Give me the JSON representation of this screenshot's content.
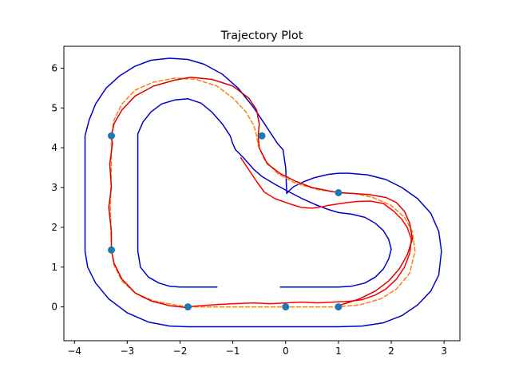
{
  "chart_data": {
    "type": "line",
    "title": "Trajectory Plot",
    "xlabel": "",
    "ylabel": "",
    "xlim": [
      -4.2,
      3.3
    ],
    "ylim": [
      -0.85,
      6.55
    ],
    "x_ticks": [
      -4,
      -3,
      -2,
      -1,
      0,
      1,
      2,
      3
    ],
    "y_ticks": [
      0,
      1,
      2,
      3,
      4,
      5,
      6
    ],
    "x_tick_labels": [
      "−4",
      "−3",
      "−2",
      "−1",
      "0",
      "1",
      "2",
      "3"
    ],
    "y_tick_labels": [
      "0",
      "1",
      "2",
      "3",
      "4",
      "5",
      "6"
    ],
    "grid": false,
    "legend": "none",
    "series": [
      {
        "color": "#0000cc",
        "style": "solid",
        "x": [
          -0.1,
          1.0,
          1.25,
          1.5,
          1.7,
          1.85,
          1.95,
          2.0,
          1.95,
          1.85,
          1.7,
          1.5,
          1.25,
          1.0,
          0.8,
          0.55,
          0.3,
          0.05,
          -0.2,
          -0.45,
          -0.6,
          -0.7,
          -0.8,
          -0.95,
          -1.0,
          -1.05,
          -1.2,
          -1.4,
          -1.6,
          -1.85,
          -2.1,
          -2.35,
          -2.55,
          -2.7,
          -2.8,
          -2.8,
          -2.8,
          -2.75,
          -2.6,
          -2.4,
          -2.2,
          -2.0,
          -1.8,
          -1.6,
          -1.45,
          -1.35,
          -1.3,
          -1.3
        ],
        "y": [
          0.5,
          0.5,
          0.52,
          0.6,
          0.75,
          0.95,
          1.2,
          1.45,
          1.7,
          1.92,
          2.1,
          2.25,
          2.33,
          2.37,
          2.45,
          2.58,
          2.73,
          2.9,
          3.08,
          3.28,
          3.45,
          3.6,
          3.75,
          3.95,
          4.1,
          4.3,
          4.6,
          4.9,
          5.12,
          5.23,
          5.2,
          5.1,
          4.9,
          4.65,
          4.35,
          3.0,
          1.4,
          1.0,
          0.75,
          0.6,
          0.52,
          0.5,
          0.5,
          0.5,
          0.5,
          0.5,
          0.5,
          0.5
        ]
      },
      {
        "color": "#0000cc",
        "style": "solid",
        "x": [
          -0.1,
          1.0,
          1.45,
          1.85,
          2.2,
          2.5,
          2.75,
          2.9,
          2.95,
          2.9,
          2.75,
          2.5,
          2.2,
          1.9,
          1.55,
          1.2,
          1.0,
          0.8,
          0.55,
          0.35,
          0.15,
          0.05,
          0.02,
          0.0,
          -0.05,
          -0.15,
          -0.35,
          -0.6,
          -0.9,
          -1.2,
          -1.55,
          -1.85,
          -2.2,
          -2.55,
          -2.85,
          -3.15,
          -3.4,
          -3.6,
          -3.72,
          -3.8,
          -3.8,
          -3.8,
          -3.75,
          -3.6,
          -3.35,
          -3.0,
          -2.6,
          -2.2,
          -1.85,
          -1.5,
          -1.0,
          -0.6,
          -0.3,
          -0.1
        ],
        "y": [
          -0.5,
          -0.5,
          -0.48,
          -0.4,
          -0.22,
          0.05,
          0.4,
          0.8,
          1.4,
          1.9,
          2.35,
          2.72,
          3.0,
          3.2,
          3.32,
          3.36,
          3.36,
          3.33,
          3.25,
          3.15,
          3.02,
          2.9,
          2.85,
          3.5,
          3.95,
          4.1,
          4.5,
          5.0,
          5.5,
          5.85,
          6.1,
          6.22,
          6.25,
          6.2,
          6.05,
          5.8,
          5.5,
          5.1,
          4.7,
          4.3,
          3.0,
          1.4,
          1.0,
          0.6,
          0.2,
          -0.15,
          -0.38,
          -0.48,
          -0.5,
          -0.5,
          -0.5,
          -0.5,
          -0.5,
          -0.5
        ]
      },
      {
        "color": "#ff7f0e",
        "style": "dashed",
        "x": [
          -1.85,
          -1.5,
          -1.0,
          -0.5,
          -0.1,
          0.0,
          0.5,
          1.0,
          1.4,
          1.8,
          2.1,
          2.35,
          2.45,
          2.4,
          2.25,
          2.0,
          1.65,
          1.3,
          1.0,
          0.6,
          0.2,
          -0.15,
          -0.4,
          -0.52,
          -0.55,
          -0.6,
          -0.75,
          -1.0,
          -1.3,
          -1.7,
          -2.1,
          -2.5,
          -2.85,
          -3.1,
          -3.25,
          -3.3,
          -3.3,
          -3.32,
          -3.3,
          -3.25,
          -3.1,
          -2.85,
          -2.5,
          -2.1,
          -1.85
        ],
        "y": [
          0.0,
          0.0,
          0.0,
          0.0,
          0.0,
          0.0,
          0.0,
          0.0,
          0.05,
          0.2,
          0.45,
          0.85,
          1.4,
          1.9,
          2.25,
          2.55,
          2.75,
          2.85,
          2.87,
          2.95,
          3.1,
          3.35,
          3.7,
          4.05,
          4.3,
          4.55,
          4.9,
          5.25,
          5.55,
          5.72,
          5.75,
          5.65,
          5.45,
          5.1,
          4.7,
          4.3,
          3.5,
          2.5,
          1.43,
          1.05,
          0.65,
          0.35,
          0.15,
          0.05,
          0.0
        ]
      },
      {
        "color": "#ff0000",
        "style": "solid",
        "x": [
          -1.85,
          -1.7,
          -1.4,
          -1.0,
          -0.6,
          -0.3,
          0.0,
          0.3,
          0.6,
          0.9,
          1.2,
          1.45,
          1.7,
          1.9,
          2.1,
          2.25,
          2.35,
          2.38,
          2.3,
          2.2,
          2.05,
          1.85,
          1.6,
          1.35,
          1.15,
          0.95,
          0.8,
          0.7,
          0.6,
          0.5,
          0.3,
          0.1,
          -0.2,
          -0.4,
          -0.55,
          -0.7,
          -0.85
        ],
        "y": [
          0.0,
          0.02,
          0.05,
          0.08,
          0.1,
          0.08,
          0.1,
          0.12,
          0.1,
          0.12,
          0.14,
          0.18,
          0.3,
          0.45,
          0.7,
          1.0,
          1.35,
          1.7,
          2.0,
          2.2,
          2.4,
          2.6,
          2.66,
          2.65,
          2.62,
          2.58,
          2.55,
          2.52,
          2.5,
          2.48,
          2.5,
          2.58,
          2.72,
          2.88,
          3.15,
          3.45,
          3.75
        ]
      },
      {
        "color": "#dd0000",
        "style": "solid",
        "x": [
          -1.85,
          -2.2,
          -2.55,
          -2.85,
          -3.1,
          -3.25,
          -3.3,
          -3.3,
          -3.35,
          -3.3,
          -3.33,
          -3.28,
          -3.3,
          -3.25,
          -3.1,
          -2.85,
          -2.5,
          -2.1,
          -1.8,
          -1.4,
          -1.0,
          -0.7,
          -0.55,
          -0.5,
          -0.52,
          -0.5,
          -0.35,
          -0.1,
          0.2,
          0.5,
          0.8,
          1.0,
          1.3,
          1.6,
          1.9,
          2.1,
          2.25,
          2.35,
          2.4,
          2.3,
          2.15,
          1.95,
          1.7,
          1.4,
          1.0
        ],
        "y": [
          -0.02,
          0.03,
          0.15,
          0.35,
          0.7,
          1.1,
          1.43,
          1.9,
          2.5,
          3.0,
          3.6,
          4.1,
          4.3,
          4.6,
          4.95,
          5.3,
          5.55,
          5.7,
          5.77,
          5.72,
          5.55,
          5.25,
          4.95,
          4.6,
          4.3,
          4.0,
          3.6,
          3.35,
          3.15,
          3.0,
          2.92,
          2.87,
          2.85,
          2.82,
          2.75,
          2.62,
          2.4,
          2.1,
          1.7,
          1.3,
          0.95,
          0.65,
          0.4,
          0.2,
          0.03
        ]
      }
    ],
    "markers": {
      "color": "#1f77b4",
      "x": [
        -1.85,
        0.0,
        1.0,
        1.0,
        -0.45,
        -3.3,
        -3.3
      ],
      "y": [
        0.0,
        0.0,
        0.0,
        2.87,
        4.3,
        4.3,
        1.43
      ]
    }
  }
}
